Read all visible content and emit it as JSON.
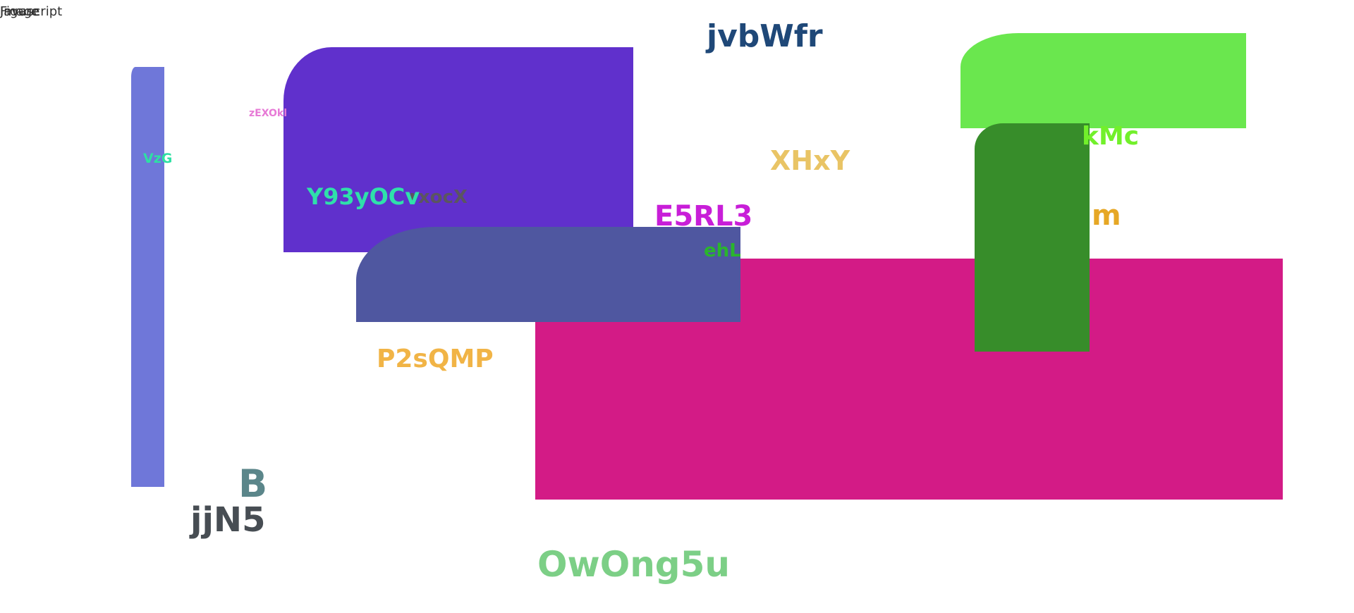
{
  "corner_text": [
    "Image",
    "Figure",
    "Javascript"
  ],
  "labels": {
    "title": "jvbWfr",
    "vzg": "VzG",
    "zexoki": "zEXOkl",
    "y93": "Y93yOCv",
    "xxocx": "rxocX",
    "xhxy": "XHxY",
    "kmc": "kMc",
    "e5rl3": "E5RL3",
    "m": "m",
    "ehl": "ehL",
    "p2sqmp": "P2sQMP",
    "b": "B",
    "jjn5": "jjN5",
    "owong5u": "OwOng5u"
  },
  "colors": {
    "lavender_bar": "#6f77d9",
    "purple_block": "#6030cc",
    "slate_block": "#4f57a0",
    "magenta_block": "#d31b86",
    "lime_block": "#6ae74e",
    "green_block": "#378d2a"
  }
}
